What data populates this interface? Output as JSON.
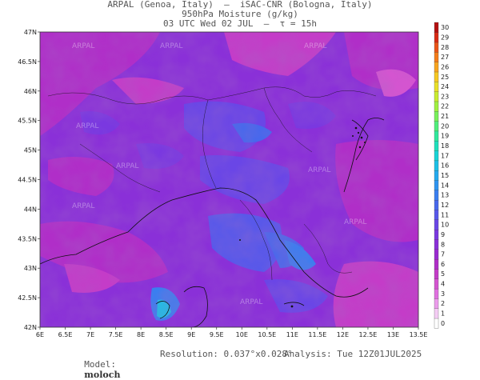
{
  "header": {
    "line1": "ARPAL (Genoa, Italy)  —  iSAC-CNR (Bologna, Italy)",
    "line2": "950hPa Moisture (g/kg)",
    "line3": "03 UTC Wed 02 JUL  —  τ = 15h"
  },
  "axes": {
    "lon_labels": [
      "6E",
      "6.5E",
      "7E",
      "7.5E",
      "8E",
      "8.5E",
      "9E",
      "9.5E",
      "10E",
      "10.5E",
      "11E",
      "11.5E",
      "12E",
      "12.5E",
      "13E",
      "13.5E"
    ],
    "lat_labels": [
      "47N",
      "46.5N",
      "46N",
      "45.5N",
      "45N",
      "44.5N",
      "44N",
      "43.5N",
      "43N",
      "42.5N",
      "42N"
    ]
  },
  "colorbar": {
    "labels": [
      "0",
      "1",
      "2",
      "3",
      "4",
      "5",
      "6",
      "7",
      "8",
      "9",
      "10",
      "11",
      "12",
      "13",
      "14",
      "15",
      "16",
      "17",
      "18",
      "19",
      "20",
      "21",
      "22",
      "23",
      "24",
      "25",
      "26",
      "27",
      "28",
      "29",
      "30"
    ],
    "colors": [
      "#ffffff",
      "#f4ccf4",
      "#ec9cec",
      "#e070e0",
      "#d455d0",
      "#c43cc8",
      "#b02ec8",
      "#9a2ad0",
      "#8a30d8",
      "#7a38e0",
      "#6a46e6",
      "#5858ea",
      "#4868ec",
      "#3a7ef0",
      "#2e94f0",
      "#24aaee",
      "#1cc0e6",
      "#18d4d6",
      "#1ee0bc",
      "#30e89c",
      "#50ee7a",
      "#78f05a",
      "#a0f040",
      "#c8ec30",
      "#e8e028",
      "#f6c822",
      "#f8a41e",
      "#f47c1a",
      "#ea5418",
      "#d82a14",
      "#b41010"
    ]
  },
  "watermark": "ARPAL",
  "footer": {
    "model_label": "Model:",
    "model_value": "moloch",
    "resolution": "Resolution: 0.037°x0.028°",
    "analysis": "Analysis: Tue 12Z01JUL2025"
  }
}
